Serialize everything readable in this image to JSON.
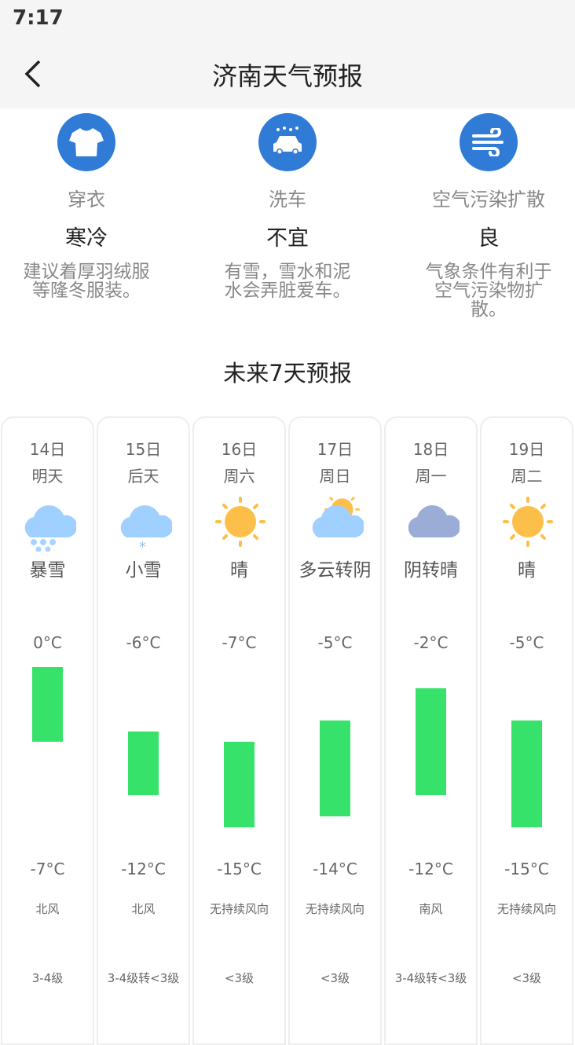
{
  "status": {
    "time": "7:17"
  },
  "header": {
    "title": "济南天气预报"
  },
  "indices": [
    {
      "icon": "tshirt-icon",
      "name": "穿衣",
      "value": "寒冷",
      "desc": "建议着厚羽绒服等隆冬服装。"
    },
    {
      "icon": "car-wash-icon",
      "name": "洗车",
      "value": "不宜",
      "desc": "有雪，雪水和泥水会弄脏爱车。"
    },
    {
      "icon": "wind-icon",
      "name": "空气污染扩散",
      "value": "良",
      "desc": "气象条件有利于空气污染物扩散。"
    }
  ],
  "forecast_title": "未来7天预报",
  "forecast": [
    {
      "date": "14日",
      "weekday": "明天",
      "icon": "heavy-snow-icon",
      "condition": "暴雪",
      "high": "0°C",
      "low": "-7°C",
      "high_val": 0,
      "low_val": -7,
      "wind_dir": "北风",
      "wind_level": "3-4级"
    },
    {
      "date": "15日",
      "weekday": "后天",
      "icon": "light-snow-icon",
      "condition": "小雪",
      "high": "-6°C",
      "low": "-12°C",
      "high_val": -6,
      "low_val": -12,
      "wind_dir": "北风",
      "wind_level": "3-4级转<3级"
    },
    {
      "date": "16日",
      "weekday": "周六",
      "icon": "sunny-icon",
      "condition": "晴",
      "high": "-7°C",
      "low": "-15°C",
      "high_val": -7,
      "low_val": -15,
      "wind_dir": "无持续风向",
      "wind_level": "<3级"
    },
    {
      "date": "17日",
      "weekday": "周日",
      "icon": "partly-cloudy-icon",
      "condition": "多云转阴",
      "high": "-5°C",
      "low": "-14°C",
      "high_val": -5,
      "low_val": -14,
      "wind_dir": "无持续风向",
      "wind_level": "<3级"
    },
    {
      "date": "18日",
      "weekday": "周一",
      "icon": "overcast-icon",
      "condition": "阴转晴",
      "high": "-2°C",
      "low": "-12°C",
      "high_val": -2,
      "low_val": -12,
      "wind_dir": "南风",
      "wind_level": "3-4级转<3级"
    },
    {
      "date": "19日",
      "weekday": "周二",
      "icon": "sunny-icon",
      "condition": "晴",
      "high": "-5°C",
      "low": "-15°C",
      "high_val": -5,
      "low_val": -15,
      "wind_dir": "无持续风向",
      "wind_level": "<3级"
    }
  ],
  "colors": {
    "accent": "#2f7bd6",
    "bar": "#36e26a"
  }
}
